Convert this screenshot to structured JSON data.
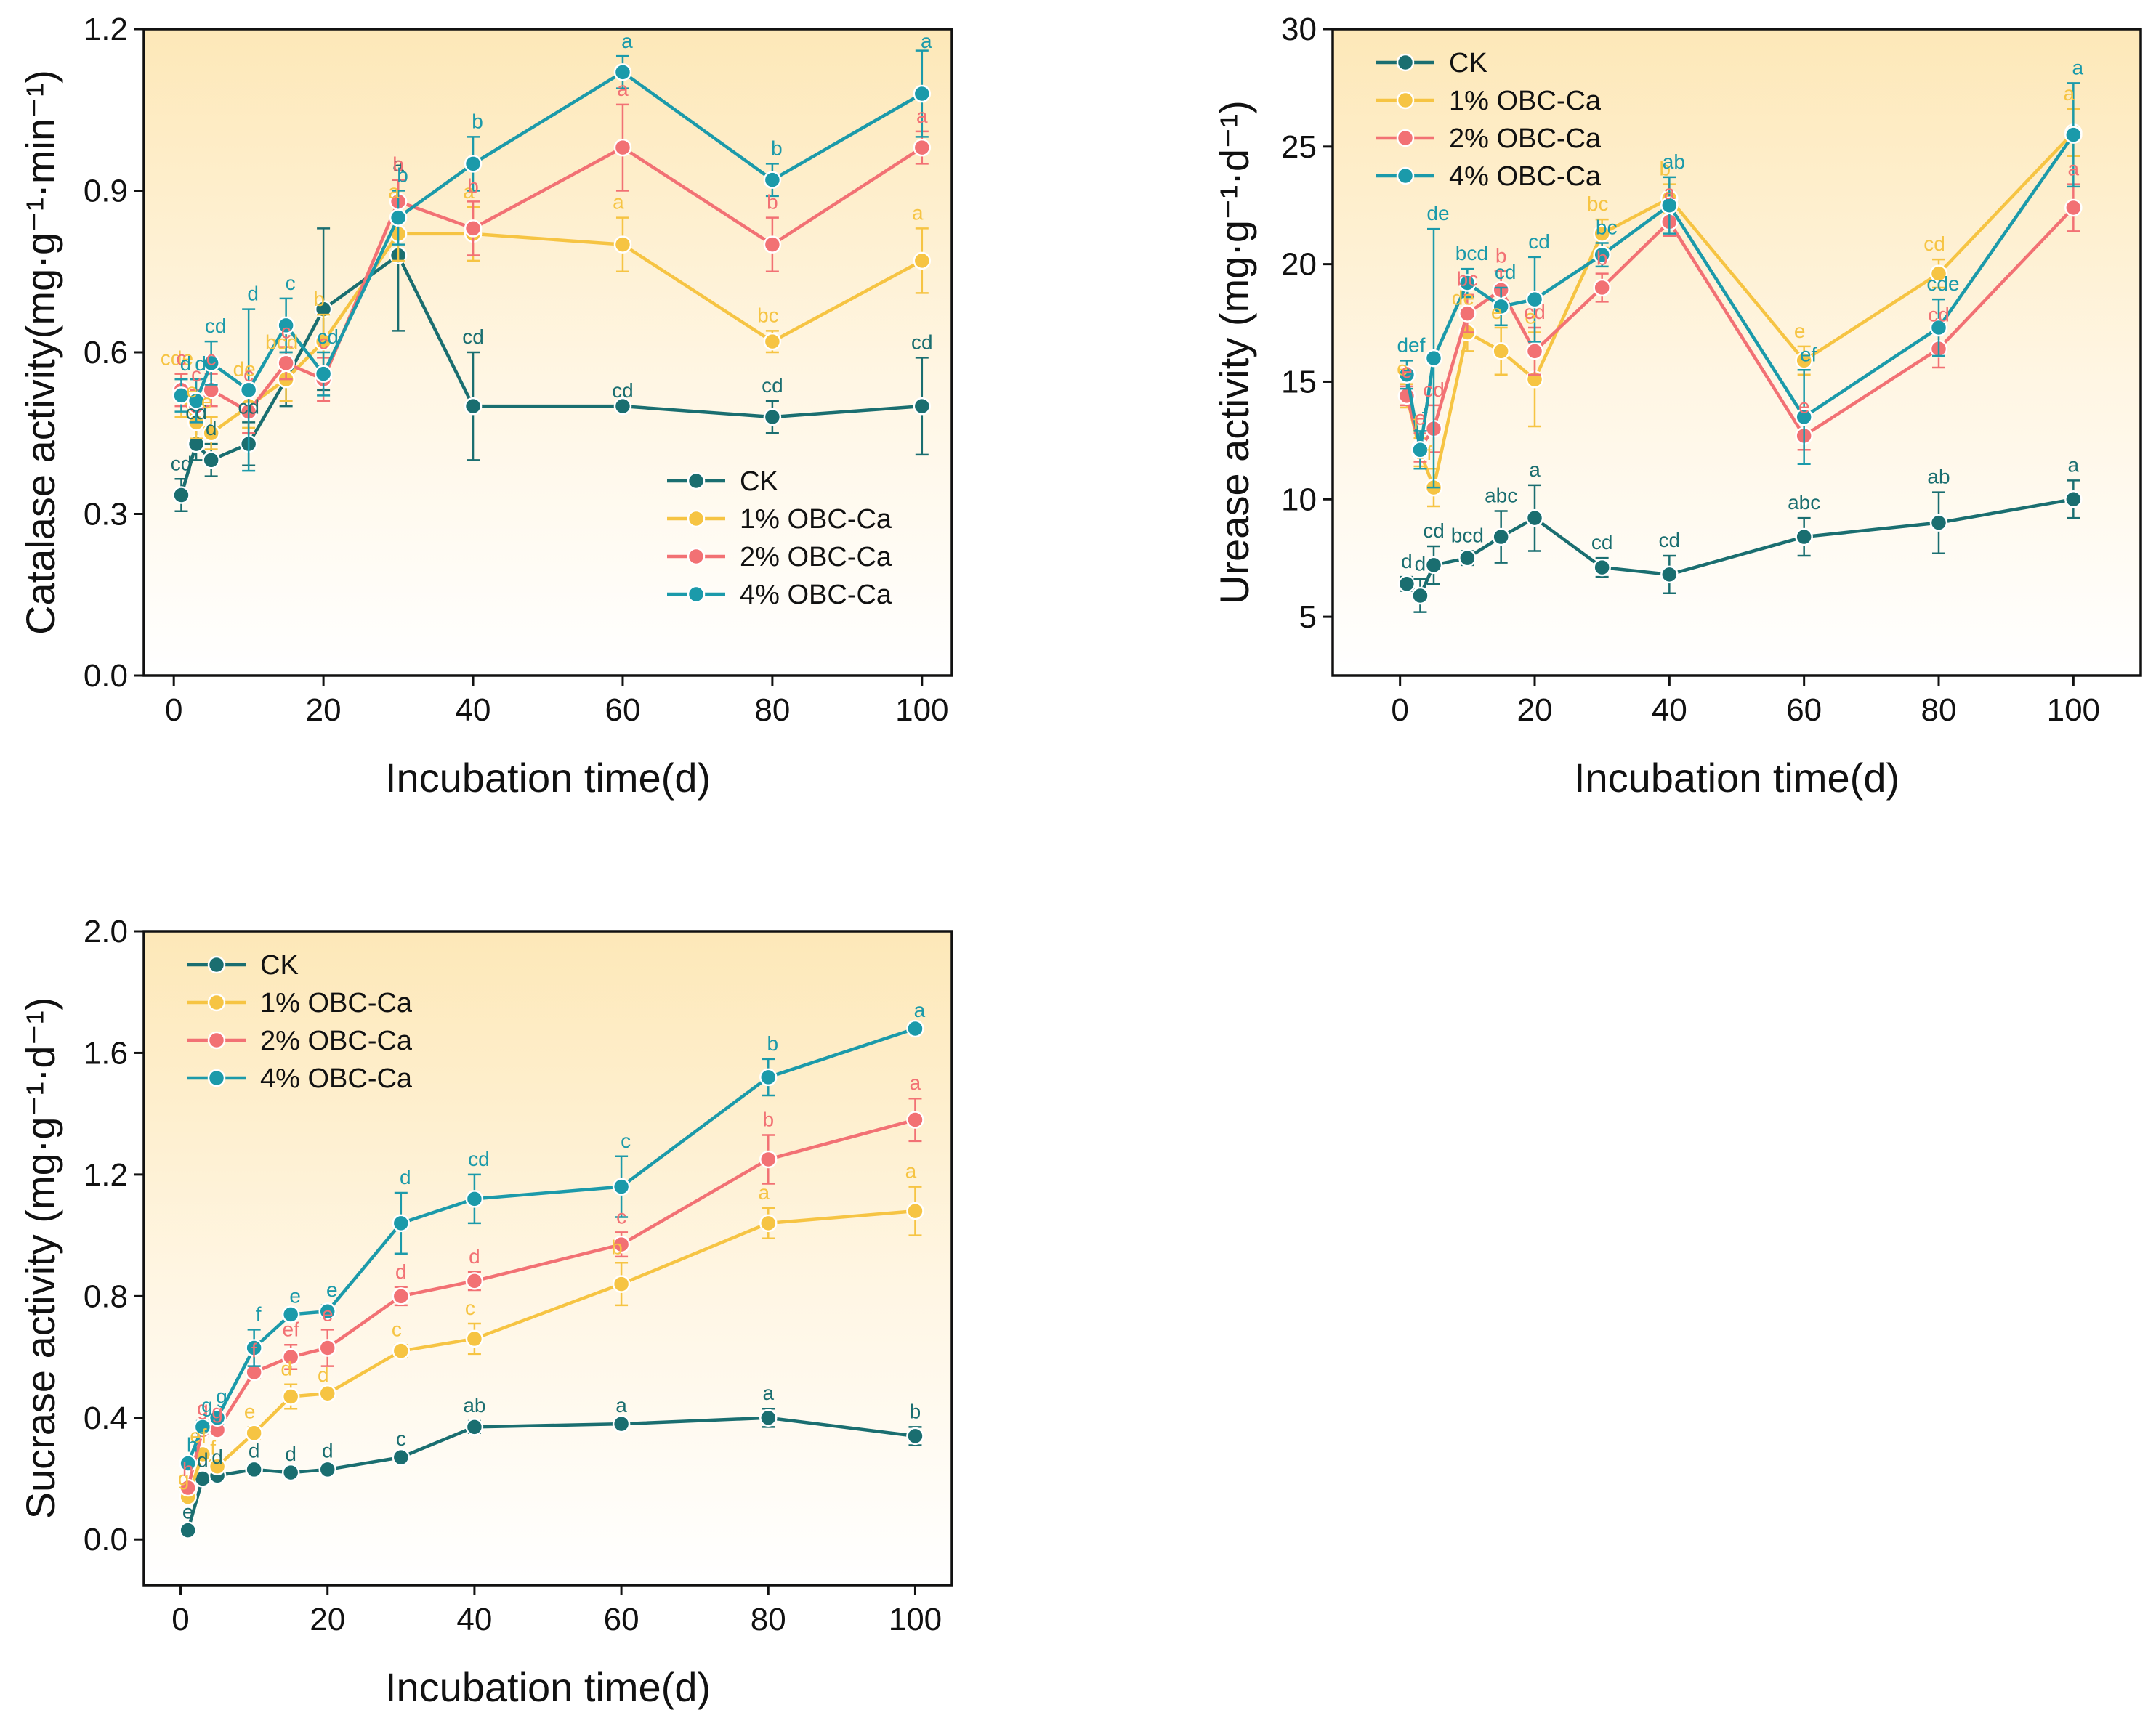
{
  "chart_data": [
    {
      "type": "line",
      "id": "catalase",
      "ylabel": "Catalase activity(mg·g⁻¹·min⁻¹)",
      "xlabel": "Incubation time(d)",
      "xlim": [
        -4,
        104
      ],
      "ylim": [
        0,
        1.2
      ],
      "xticks": [
        0,
        20,
        40,
        60,
        80,
        100
      ],
      "yticks": [
        0.0,
        0.3,
        0.6,
        0.9,
        1.2
      ],
      "ytick_labels": [
        "0.0",
        "0.3",
        "0.6",
        "0.9",
        "1.2"
      ],
      "x": [
        1,
        3,
        5,
        10,
        15,
        20,
        30,
        40,
        60,
        80,
        100
      ],
      "legend_position": "bottom-right",
      "series": [
        {
          "name": "CK",
          "color": "#1a6e70",
          "values": [
            0.335,
            0.43,
            0.4,
            0.43,
            0.55,
            0.68,
            0.78,
            0.5,
            0.5,
            0.48,
            0.5
          ],
          "errors": [
            0.03,
            0.03,
            0.03,
            0.04,
            0.05,
            0.15,
            0.14,
            0.1,
            0.0,
            0.03,
            0.09
          ],
          "labels": [
            "cd",
            "cd",
            "d",
            "cd",
            "",
            "",
            "a",
            "cd",
            "cd",
            "cd",
            "cd"
          ]
        },
        {
          "name": "1% OBC-Ca",
          "color": "#f6c443",
          "values": [
            0.52,
            0.47,
            0.45,
            0.5,
            0.55,
            0.62,
            0.82,
            0.82,
            0.8,
            0.62,
            0.77
          ],
          "errors": [
            0.04,
            0.03,
            0.03,
            0.04,
            0.04,
            0.05,
            0.05,
            0.05,
            0.05,
            0.02,
            0.06
          ],
          "labels": [
            "cde",
            "e",
            "e",
            "de",
            "bcd",
            "b",
            "a",
            "a",
            "a",
            "bc",
            "a"
          ]
        },
        {
          "name": "2% OBC-Ca",
          "color": "#f27174",
          "values": [
            0.53,
            0.5,
            0.53,
            0.49,
            0.58,
            0.55,
            0.88,
            0.83,
            0.98,
            0.8,
            0.98
          ],
          "errors": [
            0.03,
            0.03,
            0.03,
            0.04,
            0.03,
            0.04,
            0.04,
            0.05,
            0.08,
            0.05,
            0.03
          ],
          "labels": [
            "c",
            "c",
            "c",
            "c",
            "c",
            "c",
            "b",
            "b",
            "a",
            "b",
            "a"
          ]
        },
        {
          "name": "4% OBC-Ca",
          "color": "#1b9aaa",
          "values": [
            0.52,
            0.51,
            0.58,
            0.53,
            0.65,
            0.56,
            0.85,
            0.95,
            1.12,
            0.92,
            1.08
          ],
          "errors": [
            0.03,
            0.04,
            0.04,
            0.15,
            0.05,
            0.04,
            0.05,
            0.05,
            0.03,
            0.03,
            0.08
          ],
          "labels": [
            "d",
            "d",
            "cd",
            "d",
            "c",
            "cd",
            "b",
            "b",
            "a",
            "b",
            "a"
          ]
        }
      ]
    },
    {
      "type": "line",
      "id": "urease",
      "ylabel": "Urease activity (mg·g⁻¹·d⁻¹)",
      "xlabel": "Incubation time(d)",
      "xlim": [
        -10,
        110
      ],
      "ylim": [
        2.5,
        30
      ],
      "xticks": [
        0,
        20,
        40,
        60,
        80,
        100
      ],
      "yticks": [
        5,
        10,
        15,
        20,
        25,
        30
      ],
      "ytick_labels": [
        "5",
        "10",
        "15",
        "20",
        "25",
        "30"
      ],
      "x": [
        1,
        3,
        5,
        10,
        15,
        20,
        30,
        40,
        60,
        80,
        100
      ],
      "legend_position": "top-left",
      "series": [
        {
          "name": "CK",
          "color": "#1a6e70",
          "values": [
            6.4,
            5.9,
            7.2,
            7.5,
            8.4,
            9.2,
            7.1,
            6.8,
            8.4,
            9.0,
            10.0
          ],
          "errors": [
            0.3,
            0.7,
            0.8,
            0.3,
            1.1,
            1.4,
            0.4,
            0.8,
            0.8,
            1.3,
            0.8
          ],
          "labels": [
            "d",
            "d",
            "cd",
            "bcd",
            "abc",
            "a",
            "cd",
            "cd",
            "abc",
            "ab",
            "a"
          ]
        },
        {
          "name": "1% OBC-Ca",
          "color": "#f6c443",
          "values": [
            14.4,
            12.0,
            10.5,
            17.1,
            16.3,
            15.1,
            21.3,
            22.8,
            15.9,
            19.6,
            25.6
          ],
          "errors": [
            0.5,
            0.6,
            0.8,
            0.8,
            1.0,
            2.0,
            0.6,
            0.6,
            0.6,
            0.6,
            1.0
          ],
          "labels": [
            "e",
            "f",
            "f",
            "de",
            "e",
            "e",
            "bc",
            "b",
            "e",
            "cd",
            "a"
          ]
        },
        {
          "name": "2% OBC-Ca",
          "color": "#f27174",
          "values": [
            14.4,
            12.2,
            13.0,
            17.9,
            18.9,
            16.3,
            19.0,
            21.8,
            12.7,
            16.4,
            22.4
          ],
          "errors": [
            0.4,
            0.6,
            1.0,
            0.8,
            0.8,
            1.0,
            0.6,
            0.6,
            0.6,
            0.8,
            1.0
          ],
          "labels": [
            "e",
            "e",
            "cd",
            "bc",
            "b",
            "cd",
            "b",
            "a",
            "e",
            "cd",
            "a"
          ]
        },
        {
          "name": "4% OBC-Ca",
          "color": "#1b9aaa",
          "values": [
            15.3,
            12.1,
            16.0,
            19.2,
            18.2,
            18.5,
            20.4,
            22.5,
            13.5,
            17.3,
            25.5
          ],
          "errors": [
            0.6,
            0.8,
            5.5,
            0.6,
            0.8,
            1.8,
            0.5,
            1.2,
            2.0,
            1.2,
            2.2
          ],
          "labels": [
            "def",
            "f",
            "de",
            "bcd",
            "cd",
            "cd",
            "bc",
            "ab",
            "ef",
            "cde",
            "a"
          ]
        }
      ]
    },
    {
      "type": "line",
      "id": "sucrase",
      "ylabel": "Sucrase activity (mg·g⁻¹·d⁻¹)",
      "xlabel": "Incubation time(d)",
      "xlim": [
        -5,
        105
      ],
      "ylim": [
        -0.15,
        2.0
      ],
      "xticks": [
        0,
        20,
        40,
        60,
        80,
        100
      ],
      "yticks": [
        0.0,
        0.4,
        0.8,
        1.2,
        1.6,
        2.0
      ],
      "ytick_labels": [
        "0.0",
        "0.4",
        "0.8",
        "1.2",
        "1.6",
        "2.0"
      ],
      "x": [
        1,
        3,
        5,
        10,
        15,
        20,
        30,
        40,
        60,
        80,
        100
      ],
      "legend_position": "top-left",
      "series": [
        {
          "name": "CK",
          "color": "#1a6e70",
          "values": [
            0.03,
            0.2,
            0.21,
            0.23,
            0.22,
            0.23,
            0.27,
            0.37,
            0.38,
            0.4,
            0.34
          ],
          "errors": [
            0.01,
            0.01,
            0.01,
            0.01,
            0.01,
            0.01,
            0.01,
            0.02,
            0.01,
            0.03,
            0.03
          ],
          "labels": [
            "e",
            "d",
            "d",
            "d",
            "d",
            "d",
            "c",
            "ab",
            "a",
            "a",
            "b"
          ]
        },
        {
          "name": "1% OBC-Ca",
          "color": "#f6c443",
          "values": [
            0.14,
            0.28,
            0.24,
            0.35,
            0.47,
            0.48,
            0.62,
            0.66,
            0.84,
            1.04,
            1.08
          ],
          "errors": [
            0.01,
            0.01,
            0.01,
            0.02,
            0.04,
            0.01,
            0.02,
            0.05,
            0.07,
            0.05,
            0.08
          ],
          "labels": [
            "g",
            "ef",
            "f",
            "e",
            "d",
            "d",
            "c",
            "c",
            "b",
            "a",
            "a"
          ]
        },
        {
          "name": "2% OBC-Ca",
          "color": "#f27174",
          "values": [
            0.17,
            0.36,
            0.36,
            0.55,
            0.6,
            0.63,
            0.8,
            0.85,
            0.97,
            1.25,
            1.38
          ],
          "errors": [
            0.01,
            0.02,
            0.01,
            0.02,
            0.04,
            0.06,
            0.03,
            0.03,
            0.04,
            0.08,
            0.07
          ],
          "labels": [
            "h",
            "g",
            "g",
            "f",
            "ef",
            "e",
            "d",
            "d",
            "c",
            "b",
            "a"
          ]
        },
        {
          "name": "4% OBC-Ca",
          "color": "#1b9aaa",
          "values": [
            0.25,
            0.37,
            0.4,
            0.63,
            0.74,
            0.75,
            1.04,
            1.12,
            1.16,
            1.52,
            1.68
          ],
          "errors": [
            0.01,
            0.02,
            0.02,
            0.06,
            0.01,
            0.02,
            0.1,
            0.08,
            0.1,
            0.06,
            0.01
          ],
          "labels": [
            "h",
            "g",
            "g",
            "f",
            "e",
            "e",
            "d",
            "cd",
            "c",
            "b",
            "a"
          ]
        }
      ]
    }
  ]
}
